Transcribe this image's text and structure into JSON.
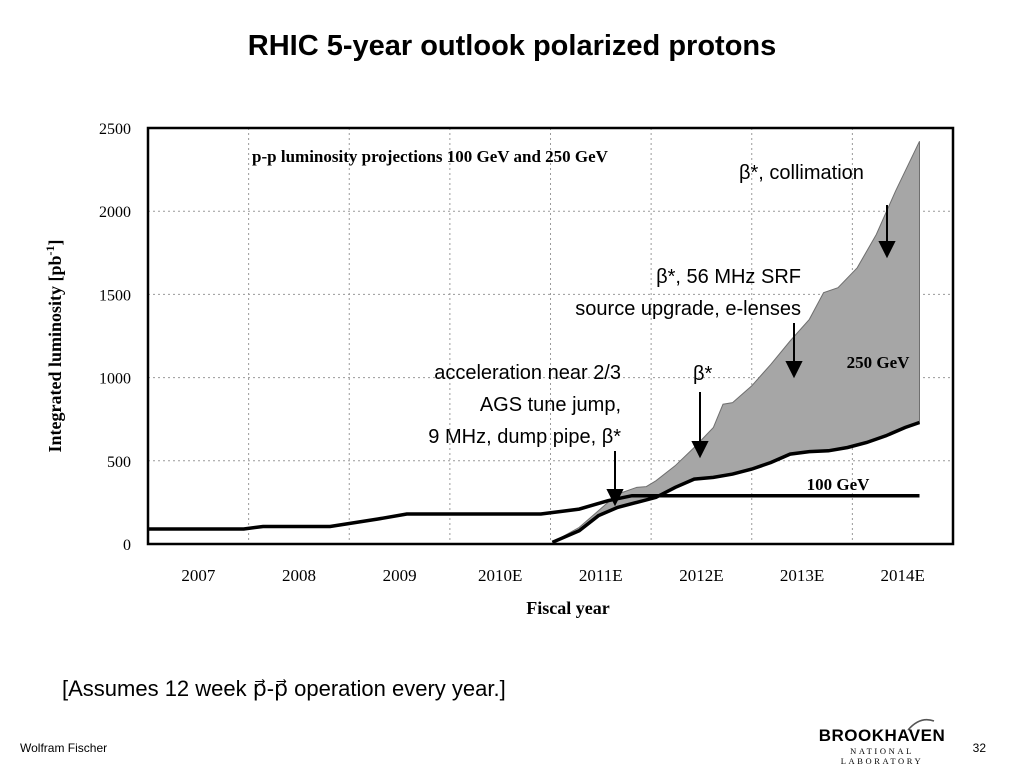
{
  "slide": {
    "title": "RHIC 5-year outlook polarized protons",
    "footnote": "[Assumes 12 week p⃗-p⃗ operation every year.]",
    "author": "Wolfram Fischer",
    "page_number": "32",
    "logo": {
      "main": "BROOKHAVEN",
      "sub": "NATIONAL LABORATORY"
    }
  },
  "chart_data": {
    "type": "line",
    "title": "p-p luminosity projections 100 GeV and 250 GeV",
    "xlabel": "Fiscal year",
    "ylabel": "Integrated luminosity [pb",
    "ylabel_sup": "-1",
    "ylabel_end": "]",
    "xlim": [
      2006.5,
      2014.9
    ],
    "ylim": [
      0,
      2500
    ],
    "yticks": [
      0,
      500,
      1000,
      1500,
      2000,
      2500
    ],
    "categories": [
      "2007",
      "2008",
      "2009",
      "2010E",
      "2011E",
      "2012E",
      "2013E",
      "2014E"
    ],
    "grid": true,
    "series": [
      {
        "name": "250 GeV",
        "role": "band",
        "color": "#a6a6a6",
        "lower": [
          [
            2010.72,
            10
          ],
          [
            2011.0,
            80
          ],
          [
            2011.2,
            170
          ],
          [
            2011.4,
            220
          ],
          [
            2011.6,
            250
          ],
          [
            2011.8,
            280
          ],
          [
            2012.0,
            340
          ],
          [
            2012.2,
            390
          ],
          [
            2012.4,
            400
          ],
          [
            2012.6,
            420
          ],
          [
            2012.8,
            450
          ],
          [
            2013.0,
            490
          ],
          [
            2013.2,
            540
          ],
          [
            2013.4,
            555
          ],
          [
            2013.6,
            560
          ],
          [
            2013.8,
            580
          ],
          [
            2014.0,
            610
          ],
          [
            2014.2,
            650
          ],
          [
            2014.4,
            700
          ],
          [
            2014.55,
            730
          ]
        ],
        "upper": [
          [
            2010.72,
            10
          ],
          [
            2011.0,
            100
          ],
          [
            2011.2,
            200
          ],
          [
            2011.4,
            300
          ],
          [
            2011.6,
            340
          ],
          [
            2011.7,
            345
          ],
          [
            2011.8,
            380
          ],
          [
            2012.0,
            470
          ],
          [
            2012.2,
            580
          ],
          [
            2012.4,
            700
          ],
          [
            2012.5,
            840
          ],
          [
            2012.6,
            850
          ],
          [
            2012.8,
            950
          ],
          [
            2013.0,
            1080
          ],
          [
            2013.2,
            1220
          ],
          [
            2013.4,
            1350
          ],
          [
            2013.55,
            1510
          ],
          [
            2013.7,
            1540
          ],
          [
            2013.9,
            1660
          ],
          [
            2014.1,
            1860
          ],
          [
            2014.3,
            2120
          ],
          [
            2014.55,
            2420
          ]
        ]
      },
      {
        "name": "100 GeV",
        "role": "line",
        "color": "#000000",
        "points": [
          [
            2006.5,
            90
          ],
          [
            2007.5,
            90
          ],
          [
            2007.7,
            105
          ],
          [
            2008.4,
            105
          ],
          [
            2008.9,
            150
          ],
          [
            2009.2,
            180
          ],
          [
            2010.6,
            180
          ],
          [
            2011.0,
            210
          ],
          [
            2011.3,
            260
          ],
          [
            2011.55,
            290
          ],
          [
            2014.55,
            290
          ]
        ]
      }
    ],
    "region_labels": [
      {
        "text": "250 GeV",
        "x": 2013.2,
        "y": 1075
      },
      {
        "text": "100 GeV",
        "x": 2012.5,
        "y": 345
      }
    ],
    "annotations": [
      {
        "text": "β*, collimation",
        "arrow": [
          2013.9,
          1750
        ]
      },
      {
        "lines": [
          "β*, 56 MHz SRF",
          "source upgrade, e-lenses"
        ],
        "arrow": [
          2012.75,
          1000
        ]
      },
      {
        "text": "β*",
        "arrow": [
          2011.85,
          520
        ]
      },
      {
        "lines": [
          "acceleration near 2/3",
          "AGS tune jump,",
          "9 MHz, dump pipe, β*"
        ],
        "arrow": [
          2011.42,
          240
        ]
      }
    ]
  }
}
